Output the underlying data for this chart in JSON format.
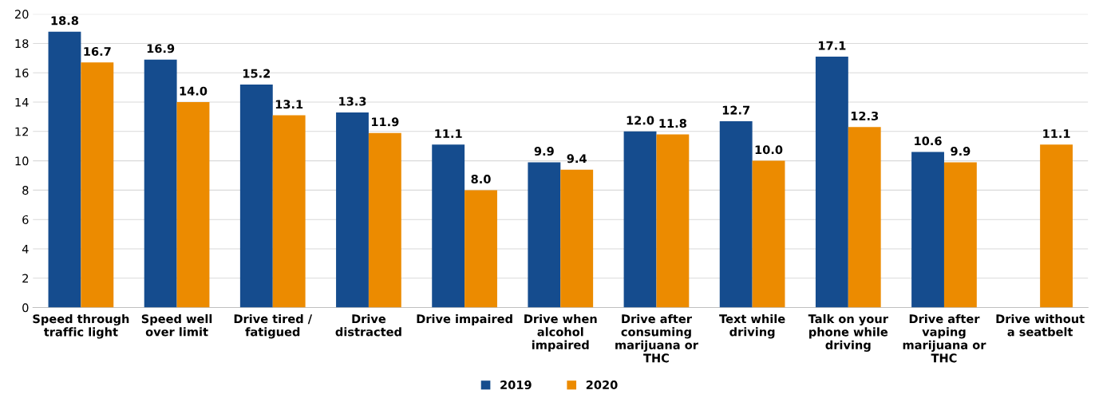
{
  "chart_data": {
    "type": "bar",
    "categories": [
      "Speed through\ntraffic light",
      "Speed well\nover limit",
      "Drive tired /\nfatigued",
      "Drive\ndistracted",
      "Drive impaired",
      "Drive when\nalcohol\nimpaired",
      "Drive after\nconsuming\nmarijuana or\nTHC",
      "Text while\ndriving",
      "Talk on your\nphone while\ndriving",
      "Drive after\nvaping\nmarijuana or\nTHC",
      "Drive without\na seatbelt"
    ],
    "series": [
      {
        "name": "2019",
        "color": "#154c8e",
        "values": [
          18.8,
          16.9,
          15.2,
          13.3,
          11.1,
          9.9,
          12.0,
          12.7,
          17.1,
          10.6,
          null
        ],
        "value_labels": [
          "18.8",
          "16.9",
          "15.2",
          "13.3",
          "11.1",
          "9.9",
          "12.0",
          "12.7",
          "17.1",
          "10.6",
          null
        ]
      },
      {
        "name": "2020",
        "color": "#ec8b00",
        "values": [
          16.7,
          14.0,
          13.1,
          11.9,
          8.0,
          9.4,
          11.8,
          10.0,
          12.3,
          9.9,
          11.1
        ],
        "value_labels": [
          "16.7",
          "14.0",
          "13.1",
          "11.9",
          "8.0",
          "9.4",
          "11.8",
          "10.0",
          "12.3",
          "9.9",
          "11.1"
        ]
      }
    ],
    "ylim": [
      0,
      20
    ],
    "yticks": [
      0,
      2,
      4,
      6,
      8,
      10,
      12,
      14,
      16,
      18,
      20
    ],
    "grid": "y",
    "legend": "bottom"
  }
}
